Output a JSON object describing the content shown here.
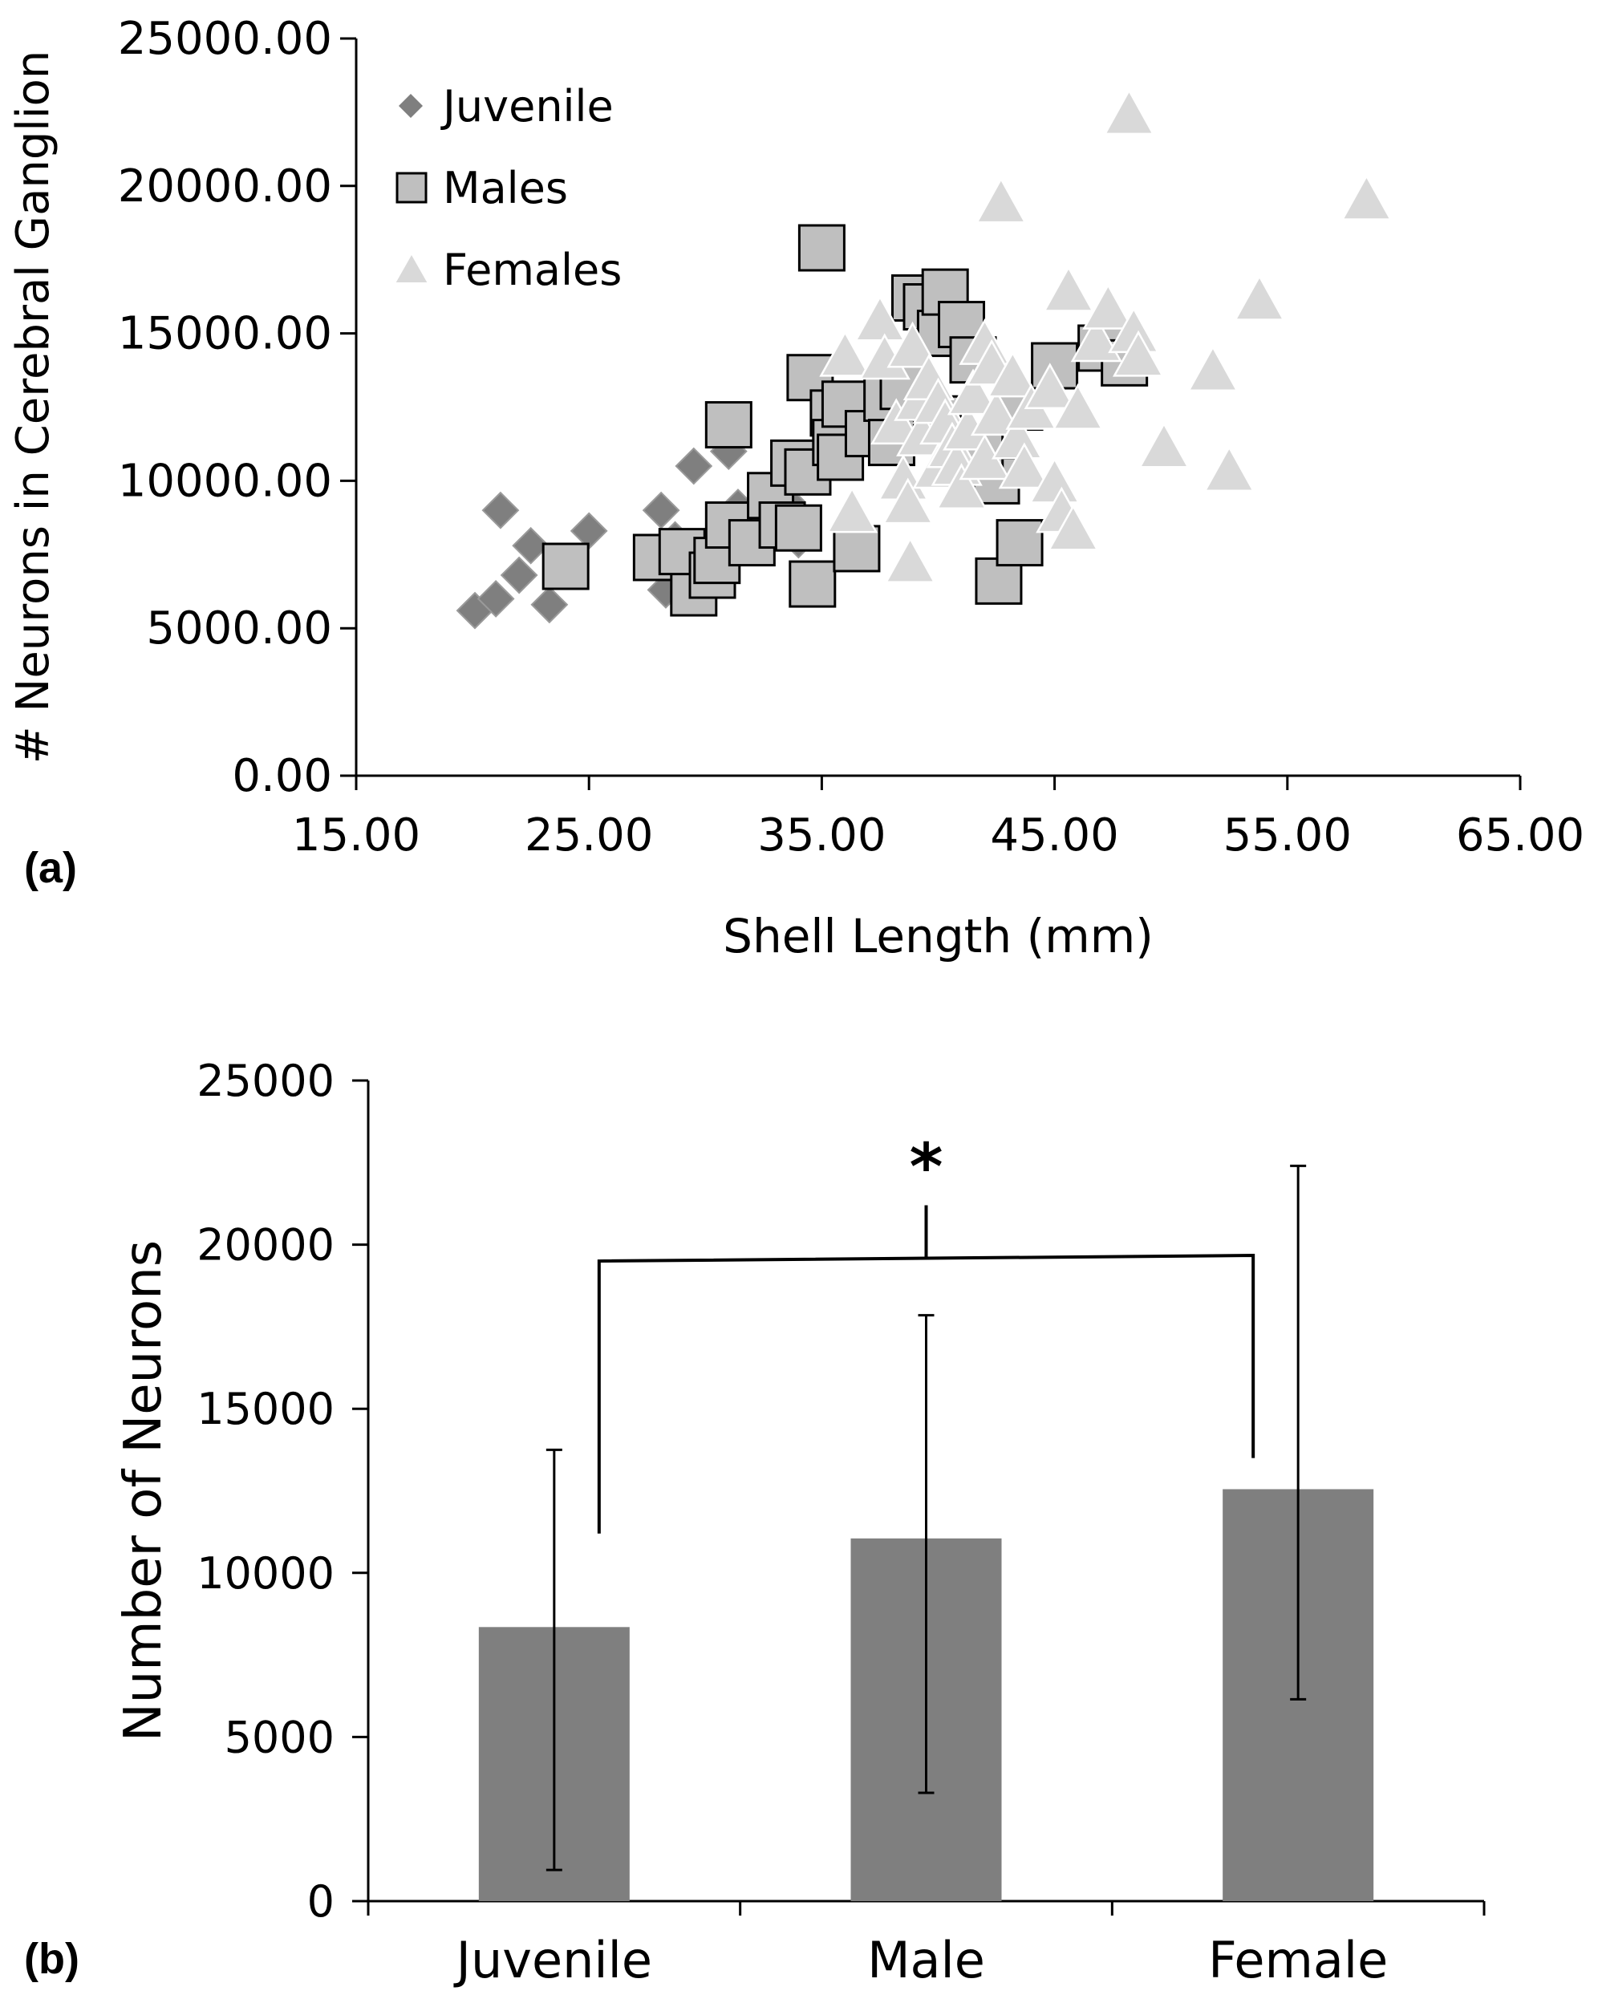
{
  "chart_data": [
    {
      "type": "scatter",
      "panel_label": "(a)",
      "title": "",
      "xlabel": "Shell Length (mm)",
      "ylabel": "# Neurons in Cerebral Ganglion",
      "xlim": [
        15,
        65
      ],
      "ylim": [
        0,
        25000
      ],
      "x_ticks": [
        "15.00",
        "25.00",
        "35.00",
        "45.00",
        "55.00",
        "65.00"
      ],
      "y_ticks": [
        "0.00",
        "5000.00",
        "10000.00",
        "15000.00",
        "20000.00",
        "25000.00"
      ],
      "grid": false,
      "legend_position": "top-left",
      "series": [
        {
          "name": "Juvenile",
          "marker": "diamond",
          "color": "#7f7f7f",
          "points": [
            [
              20.1,
              5600
            ],
            [
              21.0,
              6000
            ],
            [
              22.0,
              6800
            ],
            [
              23.3,
              5800
            ],
            [
              22.5,
              7800
            ],
            [
              21.2,
              9000
            ],
            [
              25.0,
              8300
            ],
            [
              28.1,
              9000
            ],
            [
              28.7,
              8000
            ],
            [
              28.3,
              6300
            ],
            [
              29.5,
              10500
            ],
            [
              31.0,
              11000
            ],
            [
              31.4,
              9100
            ],
            [
              33.5,
              9300
            ],
            [
              34.0,
              8000
            ]
          ]
        },
        {
          "name": "Males",
          "marker": "square",
          "color": "#bfbfbf",
          "points": [
            [
              24.0,
              7100
            ],
            [
              27.9,
              7400
            ],
            [
              29.5,
              6200
            ],
            [
              29.0,
              7600
            ],
            [
              30.3,
              6800
            ],
            [
              30.5,
              7300
            ],
            [
              31.0,
              8500
            ],
            [
              31.0,
              11900
            ],
            [
              32.0,
              7900
            ],
            [
              32.8,
              9500
            ],
            [
              33.3,
              8500
            ],
            [
              33.8,
              10600
            ],
            [
              34.0,
              8400
            ],
            [
              34.4,
              10300
            ],
            [
              34.5,
              13500
            ],
            [
              34.6,
              6500
            ],
            [
              35.0,
              17900
            ],
            [
              35.5,
              12300
            ],
            [
              35.6,
              11300
            ],
            [
              35.8,
              10800
            ],
            [
              36.0,
              12600
            ],
            [
              36.5,
              7700
            ],
            [
              37.0,
              11600
            ],
            [
              37.8,
              12800
            ],
            [
              38.0,
              11300
            ],
            [
              38.5,
              13200
            ],
            [
              39.0,
              16200
            ],
            [
              39.5,
              15900
            ],
            [
              40.0,
              12100
            ],
            [
              40.1,
              15000
            ],
            [
              40.3,
              16400
            ],
            [
              41.0,
              15300
            ],
            [
              41.5,
              14100
            ],
            [
              42.5,
              10000
            ],
            [
              42.6,
              6600
            ],
            [
              43.5,
              12500
            ],
            [
              43.5,
              7900
            ],
            [
              45.0,
              13900
            ],
            [
              47.0,
              14500
            ],
            [
              48.0,
              14000
            ],
            [
              41.8,
              11000
            ]
          ]
        },
        {
          "name": "Females",
          "marker": "triangle",
          "color": "#d9d9d9",
          "points": [
            [
              36.0,
              14300
            ],
            [
              36.3,
              9000
            ],
            [
              37.5,
              15500
            ],
            [
              37.7,
              14200
            ],
            [
              38.2,
              12000
            ],
            [
              38.5,
              10100
            ],
            [
              38.9,
              14600
            ],
            [
              38.7,
              9300
            ],
            [
              38.8,
              7300
            ],
            [
              39.2,
              12800
            ],
            [
              39.3,
              11600
            ],
            [
              39.6,
              13500
            ],
            [
              40.0,
              12700
            ],
            [
              40.0,
              10500
            ],
            [
              40.3,
              12000
            ],
            [
              40.6,
              11200
            ],
            [
              40.8,
              10600
            ],
            [
              41.0,
              9800
            ],
            [
              41.3,
              11800
            ],
            [
              41.5,
              13000
            ],
            [
              42.0,
              14700
            ],
            [
              42.0,
              10800
            ],
            [
              42.3,
              14000
            ],
            [
              42.5,
              12300
            ],
            [
              42.7,
              19500
            ],
            [
              43.2,
              13600
            ],
            [
              43.4,
              11500
            ],
            [
              43.7,
              10500
            ],
            [
              44.0,
              12500
            ],
            [
              44.8,
              13200
            ],
            [
              45.0,
              10000
            ],
            [
              45.3,
              9000
            ],
            [
              45.6,
              16500
            ],
            [
              45.8,
              8400
            ],
            [
              46.0,
              12500
            ],
            [
              46.8,
              14800
            ],
            [
              47.3,
              15900
            ],
            [
              48.2,
              22500
            ],
            [
              48.4,
              15100
            ],
            [
              48.6,
              14300
            ],
            [
              49.7,
              11200
            ],
            [
              51.8,
              13800
            ],
            [
              52.5,
              10400
            ],
            [
              53.8,
              16200
            ],
            [
              58.4,
              19600
            ]
          ]
        }
      ]
    },
    {
      "type": "bar",
      "panel_label": "(b)",
      "title": "",
      "xlabel": "",
      "ylabel": "Number of Neurons",
      "ylim": [
        0,
        25000
      ],
      "y_ticks": [
        "0",
        "5000",
        "10000",
        "15000",
        "20000",
        "25000"
      ],
      "categories": [
        "Juvenile",
        "Male",
        "Female"
      ],
      "values": [
        8350,
        11050,
        12550
      ],
      "error_high": [
        13750,
        17850,
        22400
      ],
      "error_low": [
        950,
        3300,
        6150
      ],
      "bar_color": "#7f7f7f",
      "significance": {
        "label": "*",
        "from": "Juvenile",
        "to": "Female",
        "bracket_level": 19500,
        "left_leg_bottom": 11200,
        "right_leg_bottom": 13500,
        "center_tick_top": 21200
      }
    }
  ]
}
